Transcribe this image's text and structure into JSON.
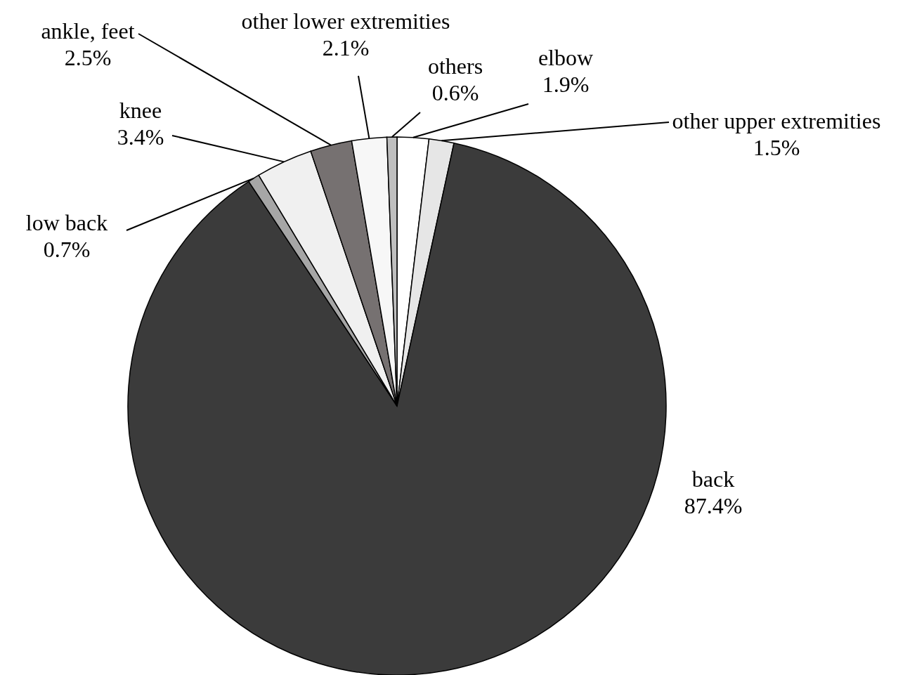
{
  "chart_data": {
    "type": "pie",
    "categories": [
      "elbow",
      "other upper extremities",
      "back",
      "low back",
      "knee",
      "ankle, feet",
      "other lower extremities",
      "others"
    ],
    "values": [
      1.9,
      1.5,
      87.4,
      0.7,
      3.4,
      2.5,
      2.1,
      0.6
    ],
    "colors": [
      "#ffffff",
      "#e6e6e6",
      "#3b3b3b",
      "#a6a6a6",
      "#f0f0f0",
      "#767171",
      "#f7f7f7",
      "#bfbfbf"
    ],
    "value_labels": [
      "1.9%",
      "1.5%",
      "87.4%",
      "0.7%",
      "3.4%",
      "2.5%",
      "2.1%",
      "0.6%"
    ]
  }
}
